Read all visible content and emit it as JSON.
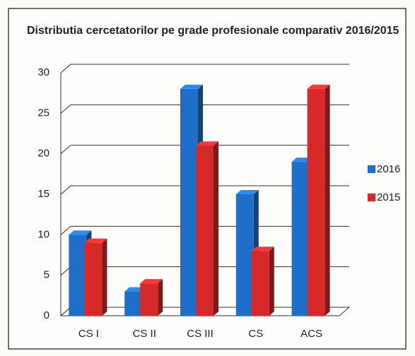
{
  "chart_data": {
    "type": "bar",
    "title": "Distributia cercetatorilor pe grade profesionale comparativ 2016/2015",
    "categories": [
      "CS I",
      "CS II",
      "CS III",
      "CS",
      "ACS"
    ],
    "series": [
      {
        "name": "2016",
        "color": "#1f6fc8",
        "values": [
          10,
          3,
          28,
          15,
          19
        ]
      },
      {
        "name": "2015",
        "color": "#d62a2a",
        "values": [
          9,
          4,
          21,
          8,
          28
        ]
      }
    ],
    "ylim": [
      0,
      30
    ],
    "yticks": [
      0,
      5,
      10,
      15,
      20,
      25,
      30
    ],
    "grid": true,
    "legend": "right"
  }
}
